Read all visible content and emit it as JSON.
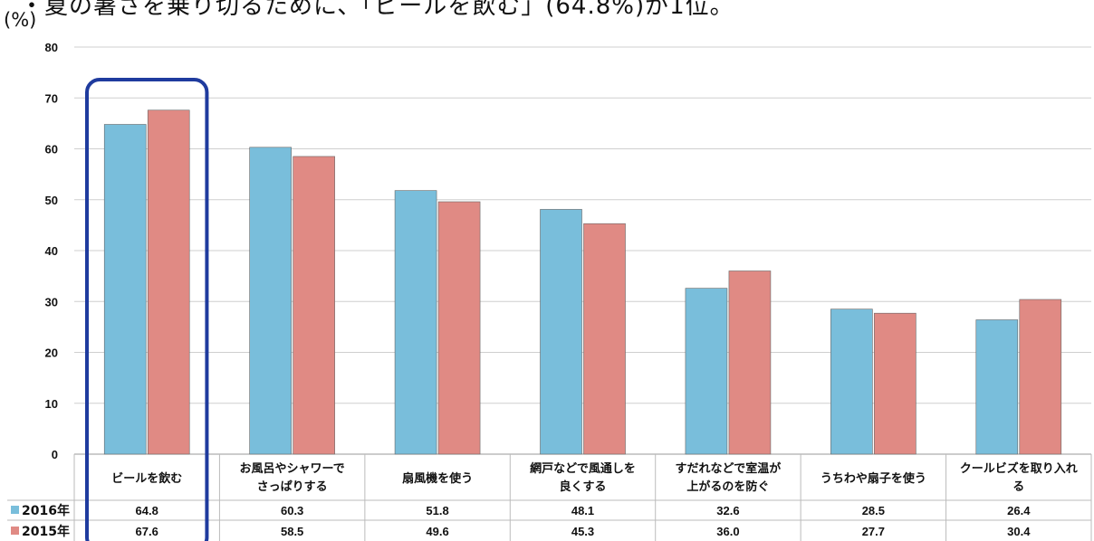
{
  "headline": "・夏の暑さを乗り切るために、「ビールを飲む」(64.8%)が1位。",
  "y_unit": "(%)",
  "colors": {
    "s2016": "#79bedb",
    "s2015": "#e08a84",
    "highlight": "#1f3b9e"
  },
  "chart_data": {
    "type": "bar",
    "ylim": [
      0,
      80
    ],
    "yticks": [
      0,
      10,
      20,
      30,
      40,
      50,
      60,
      70,
      80
    ],
    "grid": true,
    "categories": [
      [
        "ビールを飲む"
      ],
      [
        "お風呂やシャワーで",
        "さっぱりする"
      ],
      [
        "扇風機を使う"
      ],
      [
        "網戸などで風通しを",
        "良くする"
      ],
      [
        "すだれなどで室温が",
        "上がるのを防ぐ"
      ],
      [
        "うちわや扇子を使う"
      ],
      [
        "クールビズを取り入れ",
        "る"
      ]
    ],
    "series": [
      {
        "name": "2016年",
        "values": [
          64.8,
          60.3,
          51.8,
          48.1,
          32.6,
          28.5,
          26.4
        ],
        "labels": [
          "64.8",
          "60.3",
          "51.8",
          "48.1",
          "32.6",
          "28.5",
          "26.4"
        ]
      },
      {
        "name": "2015年",
        "values": [
          67.6,
          58.5,
          49.6,
          45.3,
          36.0,
          27.7,
          30.4
        ],
        "labels": [
          "67.6",
          "58.5",
          "49.6",
          "45.3",
          "36.0",
          "27.7",
          "30.4"
        ]
      }
    ],
    "highlighted_category": 0
  }
}
